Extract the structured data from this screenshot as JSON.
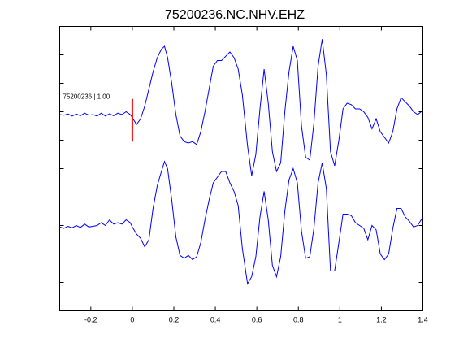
{
  "chart_data": {
    "type": "line",
    "title": "75200236.NC.NHV.EHZ",
    "xlabel": "",
    "ylabel": "",
    "xlim": [
      -0.35,
      1.4
    ],
    "ylim": [
      0,
      10
    ],
    "grid": false,
    "x_ticks": [
      -0.2,
      0,
      0.2,
      0.4,
      0.6,
      0.8,
      1,
      1.2,
      1.4
    ],
    "x_tick_labels": [
      "-0.2",
      "0",
      "0.2",
      "0.4",
      "0.6",
      "0.8",
      "1",
      "1.2",
      "1.4"
    ],
    "y_ticks": [
      1,
      2,
      3,
      4,
      5,
      6,
      7,
      8,
      9
    ],
    "annotation": {
      "text": "75200236 | 1.00",
      "x": -0.35,
      "y": 7.55
    },
    "pick": {
      "x": 0,
      "y_range": [
        5.95,
        7.45
      ],
      "color": "#ff0000"
    },
    "series": [
      {
        "color": "#0000ff",
        "x": [
          -0.35,
          -0.33,
          -0.31,
          -0.29,
          -0.27,
          -0.25,
          -0.23,
          -0.21,
          -0.19,
          -0.17,
          -0.15,
          -0.13,
          -0.11,
          -0.09,
          -0.07,
          -0.05,
          -0.03,
          -0.01,
          0.0,
          0.02,
          0.04,
          0.06,
          0.08,
          0.1,
          0.12,
          0.14,
          0.155,
          0.17,
          0.19,
          0.21,
          0.23,
          0.25,
          0.27,
          0.29,
          0.31,
          0.33,
          0.35,
          0.37,
          0.39,
          0.41,
          0.43,
          0.45,
          0.47,
          0.49,
          0.51,
          0.53,
          0.555,
          0.575,
          0.595,
          0.615,
          0.635,
          0.655,
          0.675,
          0.695,
          0.715,
          0.735,
          0.755,
          0.775,
          0.795,
          0.815,
          0.835,
          0.855,
          0.875,
          0.895,
          0.915,
          0.935,
          0.955,
          0.975,
          0.995,
          1.015,
          1.035,
          1.055,
          1.075,
          1.095,
          1.115,
          1.135,
          1.155,
          1.175,
          1.195,
          1.215,
          1.235,
          1.255,
          1.275,
          1.295,
          1.315,
          1.335,
          1.355,
          1.375,
          1.4
        ],
        "y": [
          6.9,
          6.88,
          6.92,
          6.85,
          6.92,
          6.86,
          6.95,
          6.88,
          6.9,
          6.85,
          6.95,
          6.85,
          6.93,
          6.86,
          6.95,
          6.9,
          7.0,
          6.9,
          6.8,
          6.55,
          6.75,
          7.2,
          7.8,
          8.4,
          8.9,
          9.2,
          9.3,
          8.9,
          8.0,
          6.9,
          6.15,
          5.95,
          5.9,
          5.95,
          5.85,
          6.3,
          7.0,
          7.8,
          8.6,
          8.8,
          8.8,
          8.95,
          9.1,
          8.9,
          8.5,
          7.6,
          5.8,
          4.75,
          5.5,
          7.1,
          8.5,
          7.3,
          5.6,
          4.9,
          5.2,
          7.0,
          8.4,
          9.3,
          8.8,
          6.5,
          5.4,
          5.3,
          6.6,
          8.6,
          9.55,
          8.3,
          5.6,
          5.1,
          6.0,
          7.1,
          7.3,
          7.25,
          7.1,
          7.1,
          7.0,
          6.8,
          6.4,
          6.75,
          6.3,
          6.1,
          5.9,
          6.3,
          7.1,
          7.5,
          7.35,
          7.2,
          7.0,
          6.9,
          7.05
        ]
      },
      {
        "color": "#0000ff",
        "x": [
          -0.35,
          -0.33,
          -0.31,
          -0.29,
          -0.27,
          -0.25,
          -0.23,
          -0.21,
          -0.19,
          -0.17,
          -0.15,
          -0.13,
          -0.11,
          -0.09,
          -0.07,
          -0.05,
          -0.03,
          -0.01,
          0.0,
          0.02,
          0.04,
          0.06,
          0.08,
          0.1,
          0.12,
          0.14,
          0.155,
          0.17,
          0.19,
          0.21,
          0.23,
          0.25,
          0.27,
          0.29,
          0.31,
          0.33,
          0.35,
          0.37,
          0.39,
          0.41,
          0.43,
          0.45,
          0.47,
          0.49,
          0.51,
          0.53,
          0.555,
          0.575,
          0.595,
          0.615,
          0.635,
          0.655,
          0.675,
          0.695,
          0.715,
          0.735,
          0.755,
          0.775,
          0.795,
          0.815,
          0.835,
          0.855,
          0.875,
          0.895,
          0.915,
          0.935,
          0.955,
          0.975,
          0.995,
          1.015,
          1.035,
          1.055,
          1.075,
          1.095,
          1.115,
          1.135,
          1.155,
          1.175,
          1.195,
          1.215,
          1.235,
          1.255,
          1.275,
          1.295,
          1.315,
          1.335,
          1.355,
          1.375,
          1.4
        ],
        "y": [
          2.95,
          2.9,
          2.97,
          2.92,
          3.0,
          2.93,
          3.05,
          2.95,
          2.97,
          3.0,
          3.1,
          3.0,
          3.2,
          3.05,
          3.1,
          3.05,
          3.2,
          3.1,
          2.95,
          2.7,
          2.55,
          2.25,
          2.5,
          3.6,
          4.4,
          4.9,
          5.25,
          5.0,
          3.9,
          2.6,
          1.95,
          1.85,
          1.95,
          1.8,
          1.9,
          2.4,
          3.2,
          3.9,
          4.5,
          4.7,
          4.9,
          4.9,
          4.5,
          4.2,
          3.7,
          2.2,
          0.95,
          1.2,
          1.9,
          3.3,
          4.2,
          3.2,
          1.6,
          1.2,
          1.9,
          3.5,
          4.6,
          5.0,
          4.5,
          2.8,
          1.85,
          1.9,
          2.9,
          4.5,
          5.2,
          4.3,
          1.4,
          1.4,
          2.4,
          3.4,
          3.4,
          3.35,
          3.1,
          3.0,
          2.9,
          2.5,
          3.0,
          2.85,
          2.0,
          1.8,
          2.0,
          2.9,
          3.6,
          3.6,
          3.3,
          3.15,
          2.95,
          3.0,
          3.3
        ]
      }
    ]
  }
}
